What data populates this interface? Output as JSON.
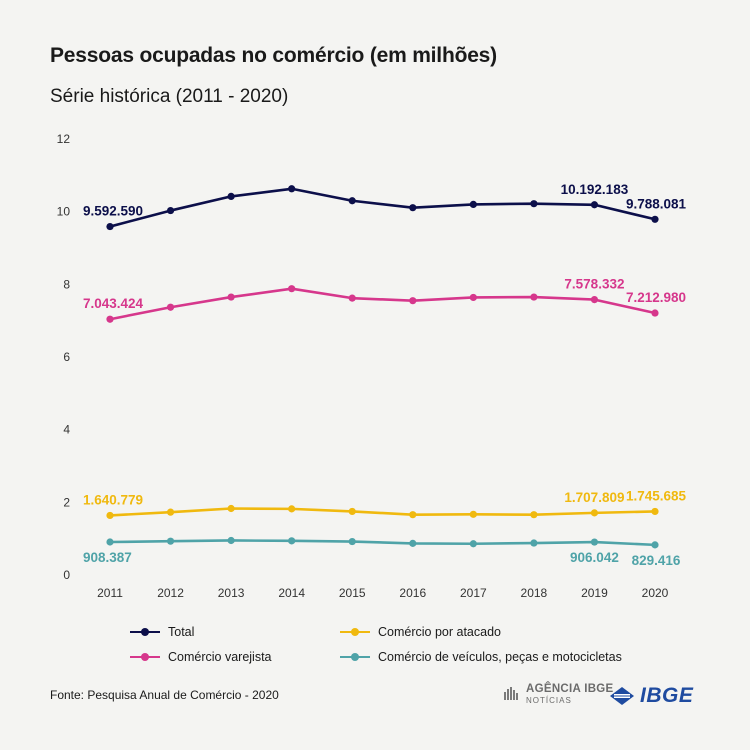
{
  "header": {
    "title": "Pessoas ocupadas no comércio (em milhões)",
    "subtitle": "Série histórica (2011 - 2020)"
  },
  "chart_data": {
    "type": "line",
    "title": "Pessoas ocupadas no comércio (em milhões)",
    "subtitle": "Série histórica (2011 - 2020)",
    "xlabel": "",
    "ylabel": "",
    "x": [
      "2011",
      "2012",
      "2013",
      "2014",
      "2015",
      "2016",
      "2017",
      "2018",
      "2019",
      "2020"
    ],
    "ylim": [
      0,
      12
    ],
    "yticks": [
      0,
      2,
      4,
      6,
      8,
      10,
      12
    ],
    "grid": false,
    "legend_position": "bottom",
    "series": [
      {
        "name": "Total",
        "color": "#0c0f4a",
        "values": [
          9.59,
          10.03,
          10.42,
          10.63,
          10.3,
          10.11,
          10.2,
          10.22,
          10.19,
          9.79
        ],
        "labels": [
          {
            "index": 0,
            "text": "9.592.590",
            "placement": "above"
          },
          {
            "index": 8,
            "text": "10.192.183",
            "placement": "above"
          },
          {
            "index": 9,
            "text": "9.788.081",
            "placement": "above"
          }
        ]
      },
      {
        "name": "Comércio varejista",
        "color": "#d6378c",
        "values": [
          7.04,
          7.37,
          7.65,
          7.88,
          7.62,
          7.55,
          7.64,
          7.65,
          7.58,
          7.21
        ],
        "labels": [
          {
            "index": 0,
            "text": "7.043.424",
            "placement": "above"
          },
          {
            "index": 8,
            "text": "7.578.332",
            "placement": "above"
          },
          {
            "index": 9,
            "text": "7.212.980",
            "placement": "above"
          }
        ]
      },
      {
        "name": "Comércio por atacado",
        "color": "#f0b90f",
        "values": [
          1.64,
          1.73,
          1.83,
          1.82,
          1.75,
          1.66,
          1.67,
          1.66,
          1.71,
          1.75
        ],
        "labels": [
          {
            "index": 0,
            "text": "1.640.779",
            "placement": "above"
          },
          {
            "index": 8,
            "text": "1.707.809",
            "placement": "above"
          },
          {
            "index": 9,
            "text": "1.745.685",
            "placement": "above"
          }
        ]
      },
      {
        "name": "Comércio de veículos, peças e motocicletas",
        "color": "#4fa3a8",
        "values": [
          0.908,
          0.93,
          0.95,
          0.94,
          0.92,
          0.87,
          0.86,
          0.88,
          0.906,
          0.829
        ],
        "labels": [
          {
            "index": 0,
            "text": "908.387",
            "placement": "below"
          },
          {
            "index": 8,
            "text": "906.042",
            "placement": "below"
          },
          {
            "index": 9,
            "text": "829.416",
            "placement": "below"
          }
        ]
      }
    ]
  },
  "legend": {
    "total": "Total",
    "atacado": "Comércio por atacado",
    "varejista": "Comércio varejista",
    "veiculos": "Comércio de veículos, peças e motocicletas"
  },
  "footer": {
    "source": "Fonte: Pesquisa Anual de Comércio - 2020",
    "agencia_line1": "AGÊNCIA IBGE",
    "agencia_line2": "NOTÍCIAS",
    "ibge_wordmark": "IBGE"
  },
  "colors": {
    "total": "#0c0f4a",
    "varejista": "#d6378c",
    "atacado": "#f0b90f",
    "veiculos": "#4fa3a8",
    "brand": "#1f4ba0"
  }
}
